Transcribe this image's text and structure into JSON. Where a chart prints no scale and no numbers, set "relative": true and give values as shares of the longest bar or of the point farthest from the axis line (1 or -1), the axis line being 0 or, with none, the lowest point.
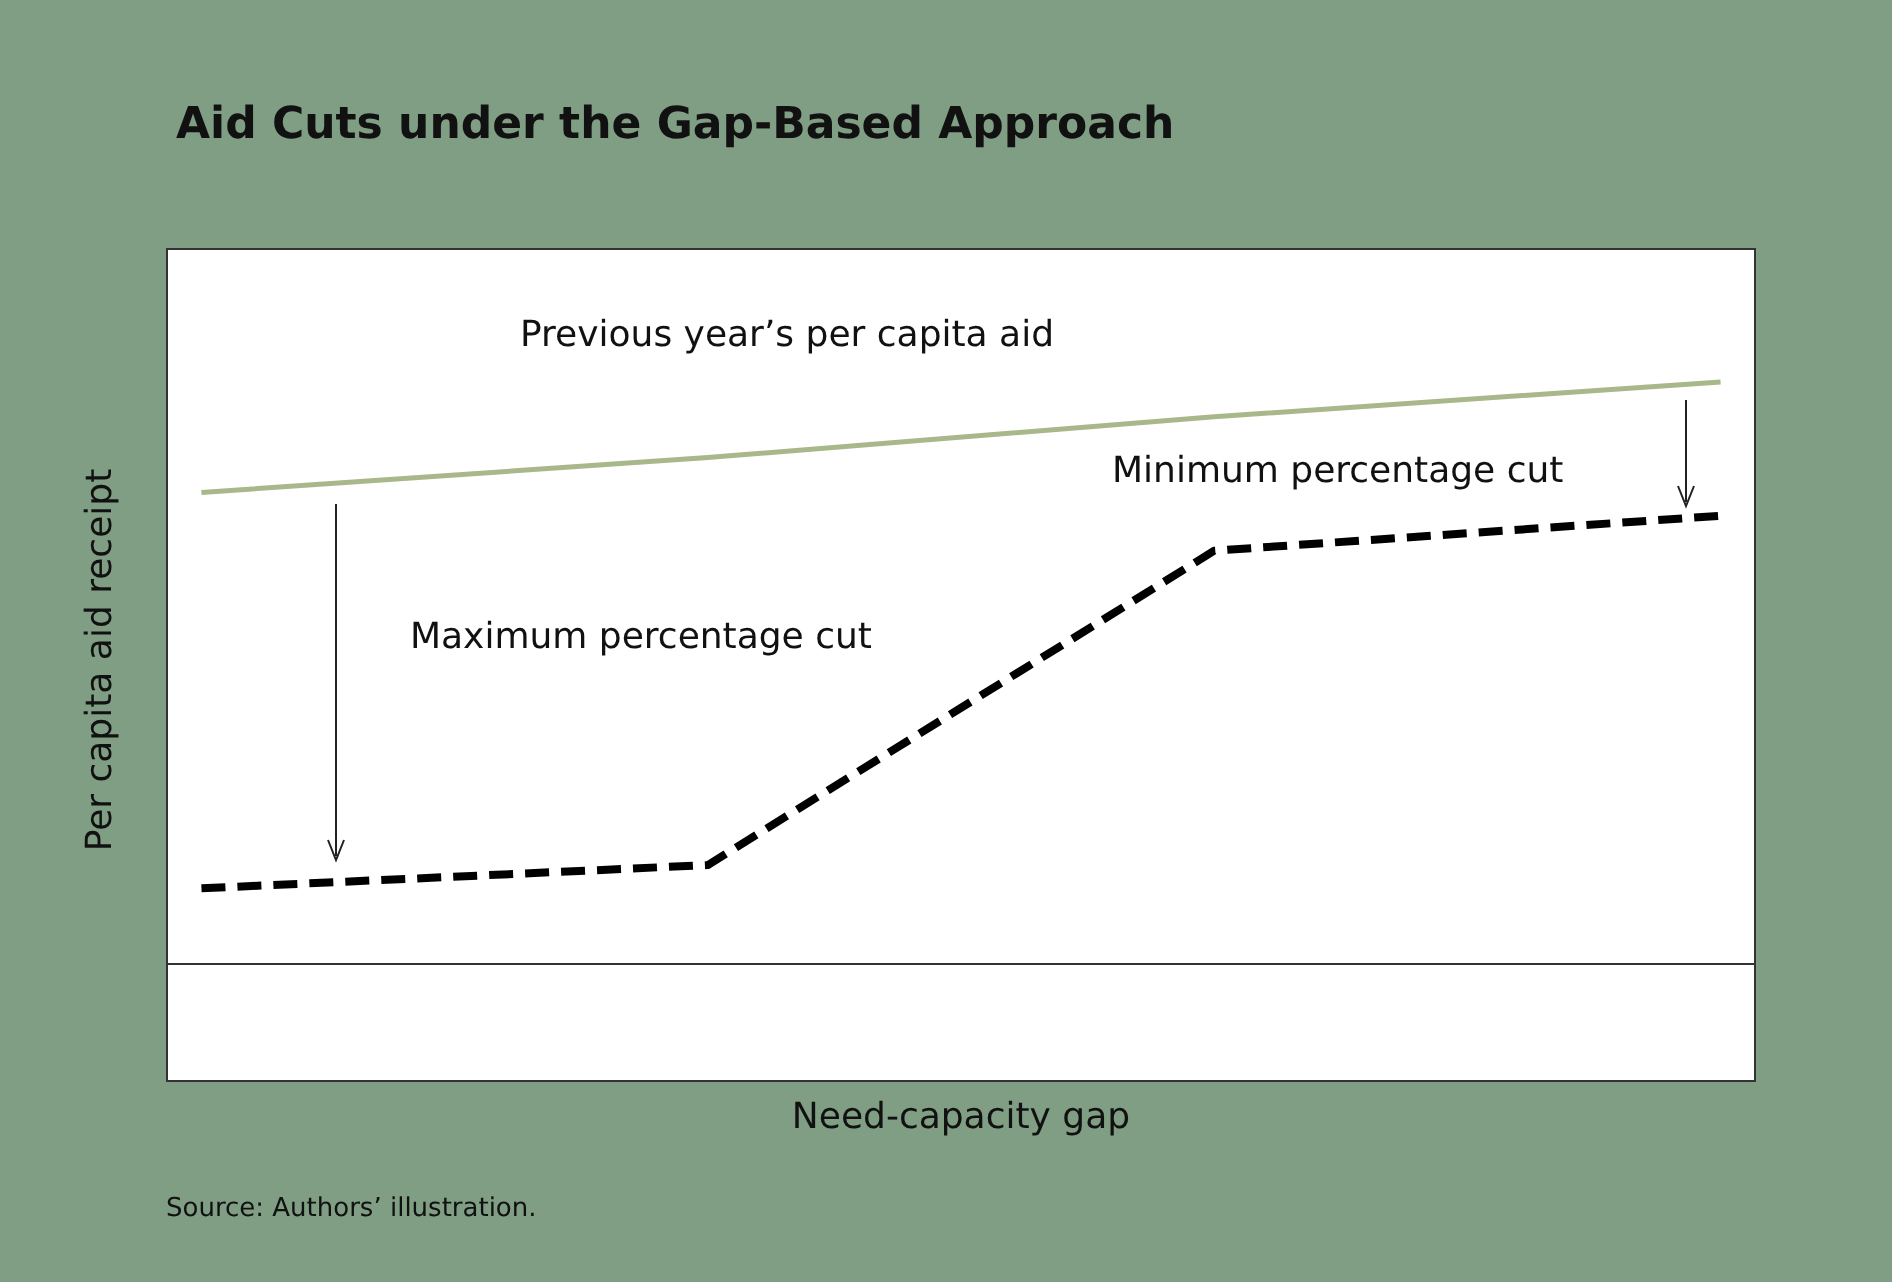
{
  "chart_data": {
    "type": "line",
    "title": "Aid Cuts under the Gap-Based Approach",
    "xlabel": "Need-capacity gap",
    "ylabel": "Per capita aid receipt",
    "relative": true,
    "categories": [
      null,
      null,
      null,
      null
    ],
    "series": [
      {
        "name": "Previous year’s per capita aid",
        "color": "#a8b88a",
        "values": [
          0.81,
          0.87,
          0.94,
          1.0
        ],
        "line_style": "solid"
      },
      {
        "color": "#000000",
        "values": [
          0.13,
          0.17,
          0.71,
          0.77
        ],
        "line_style": "dashed"
      }
    ],
    "annotations": [
      "Maximum percentage cut",
      "Minimum percentage cut",
      "Source: Authors’ illustration."
    ]
  }
}
